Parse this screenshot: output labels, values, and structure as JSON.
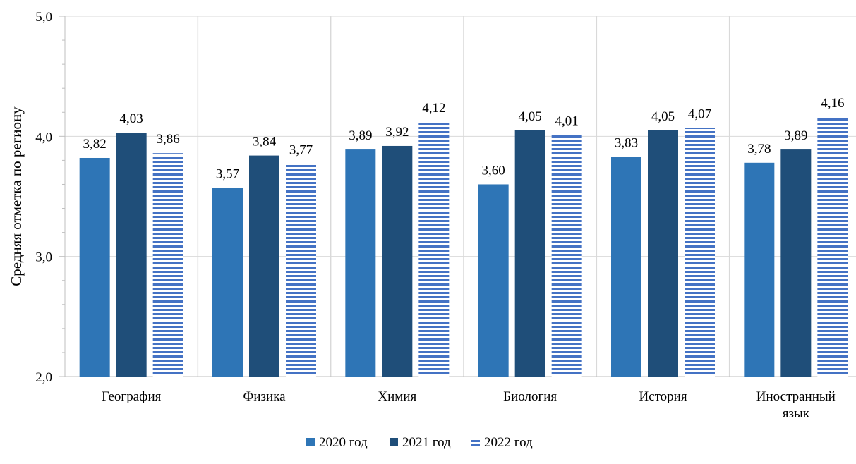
{
  "chart_data": {
    "type": "bar",
    "title": "",
    "xlabel": "",
    "ylabel": "Средняя отметка по региону",
    "ylim": [
      2.0,
      5.0
    ],
    "y_ticks": [
      "2,0",
      "3,0",
      "4,0",
      "5,0"
    ],
    "grid": true,
    "legend_position": "bottom",
    "categories": [
      [
        "География"
      ],
      [
        "Физика"
      ],
      [
        "Химия"
      ],
      [
        "Биология"
      ],
      [
        "История"
      ],
      [
        "Иностранный",
        "язык"
      ]
    ],
    "series": [
      {
        "name": "2020 год",
        "color": "#2E75B6",
        "pattern": "solid",
        "values": [
          3.82,
          3.57,
          3.89,
          3.6,
          3.83,
          3.78
        ],
        "labels": [
          "3,82",
          "3,57",
          "3,89",
          "3,60",
          "3,83",
          "3,78"
        ]
      },
      {
        "name": "2021 год",
        "color": "#1F4E79",
        "pattern": "solid",
        "values": [
          4.03,
          3.84,
          3.92,
          4.05,
          4.05,
          3.89
        ],
        "labels": [
          "4,03",
          "3,84",
          "3,92",
          "4,05",
          "4,05",
          "3,89"
        ]
      },
      {
        "name": "2022 год",
        "color": "#4472C4",
        "pattern": "horizontal-stripes",
        "values": [
          3.86,
          3.77,
          4.12,
          4.01,
          4.07,
          4.16
        ],
        "labels": [
          "3,86",
          "3,77",
          "4,12",
          "4,01",
          "4,07",
          "4,16"
        ]
      }
    ]
  }
}
